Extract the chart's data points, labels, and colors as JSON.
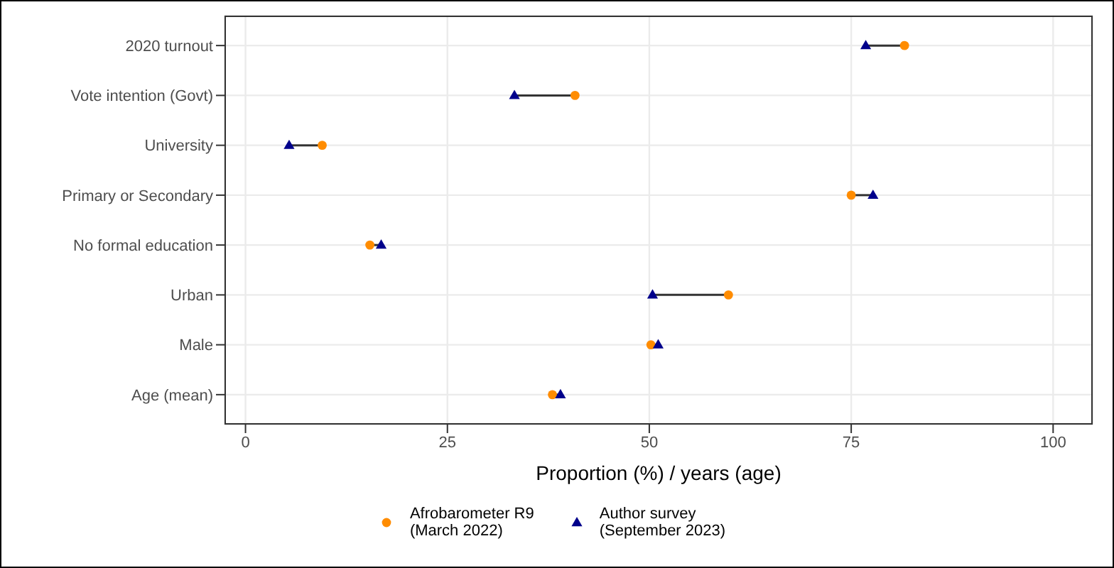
{
  "chart_data": {
    "type": "scatter",
    "xlabel": "Proportion (%) / years (age)",
    "categories": [
      "2020 turnout",
      "Vote intention (Govt)",
      "University",
      "Primary or Secondary",
      "No formal education",
      "Urban",
      "Male",
      "Age (mean)"
    ],
    "orientation": "horizontal",
    "xlim": [
      -2.6,
      104.9
    ],
    "xticks": [
      0,
      25,
      50,
      75,
      100
    ],
    "grid": true,
    "legend": "bottom",
    "series": [
      {
        "name": "Afrobarometer R9\n(March 2022)",
        "color": "#ff8c00",
        "marker": "circle",
        "values": [
          81.6,
          40.8,
          9.5,
          75.0,
          15.4,
          59.8,
          50.2,
          38.0
        ]
      },
      {
        "name": "Author survey\n(September 2023)",
        "color": "#00008b",
        "marker": "triangle",
        "values": [
          76.8,
          33.3,
          5.4,
          77.7,
          16.8,
          50.4,
          51.1,
          39.0
        ]
      }
    ]
  }
}
